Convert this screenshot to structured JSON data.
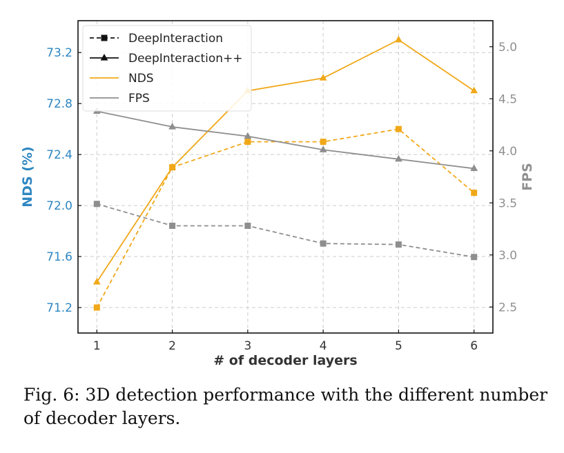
{
  "caption": "Fig. 6: 3D detection performance with the different number of decoder layers.",
  "colors": {
    "nds": "#f0a818",
    "fps": "#8e8e8e",
    "nds_axis": "#2e86c1",
    "fps_axis": "#909090"
  },
  "chart_data": {
    "type": "line",
    "x": [
      1,
      2,
      3,
      4,
      5,
      6
    ],
    "xlabel": "# of decoder layers",
    "ylabel_left": "NDS (%)",
    "ylabel_right": "FPS",
    "ylim_left": [
      71.0,
      73.45
    ],
    "ylim_right": [
      2.25,
      5.25
    ],
    "xlim": [
      0.75,
      6.25
    ],
    "yticks_left": [
      71.2,
      71.6,
      72.0,
      72.4,
      72.8,
      73.2
    ],
    "yticks_right": [
      2.5,
      3.0,
      3.5,
      4.0,
      4.5,
      5.0
    ],
    "xticks": [
      1,
      2,
      3,
      4,
      5,
      6
    ],
    "grid": true,
    "legend": [
      "DeepInteraction",
      "DeepInteraction++",
      "NDS",
      "FPS"
    ],
    "legend_position": "top-left",
    "series": [
      {
        "name": "DeepInteraction",
        "metric": "NDS",
        "axis": "left",
        "marker": "square",
        "dash": true,
        "values": [
          71.2,
          72.3,
          72.5,
          72.5,
          72.6,
          72.1
        ]
      },
      {
        "name": "DeepInteraction++",
        "metric": "NDS",
        "axis": "left",
        "marker": "triangle",
        "dash": false,
        "values": [
          71.4,
          72.3,
          72.9,
          73.0,
          73.3,
          72.9
        ]
      },
      {
        "name": "DeepInteraction",
        "metric": "FPS",
        "axis": "right",
        "marker": "square",
        "dash": true,
        "values": [
          3.49,
          3.28,
          3.28,
          3.11,
          3.1,
          2.98
        ]
      },
      {
        "name": "DeepInteraction++",
        "metric": "FPS",
        "axis": "right",
        "marker": "triangle",
        "dash": false,
        "values": [
          4.38,
          4.23,
          4.14,
          4.01,
          3.92,
          3.83
        ]
      }
    ]
  }
}
